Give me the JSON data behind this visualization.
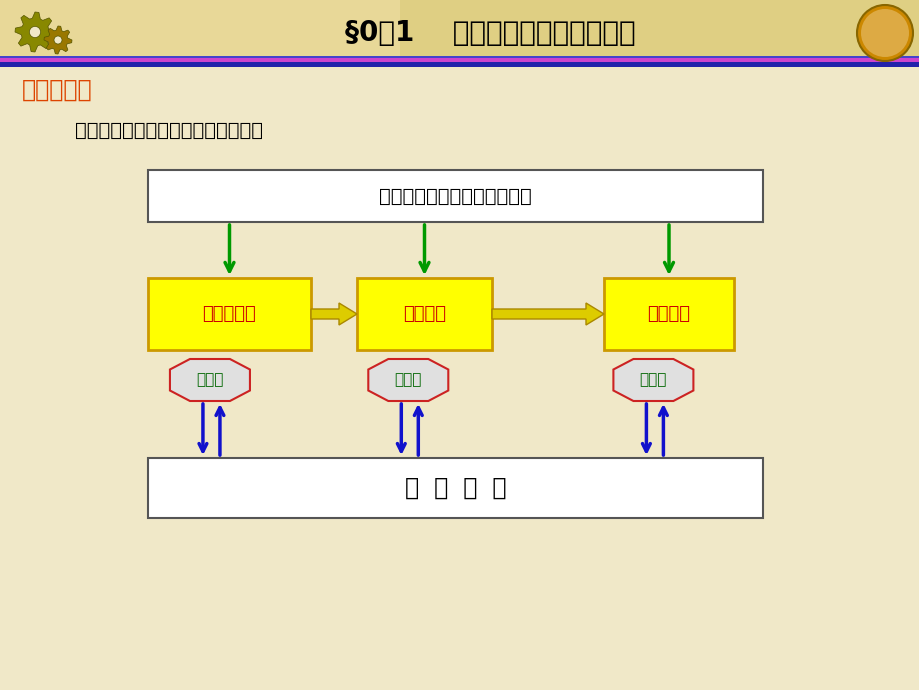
{
  "bg_color": "#f0e8c8",
  "header_bg_left": "#e8d898",
  "header_bg_right": "#d8c878",
  "title_text": "§0－1    本课程研究的对象和内容",
  "section_title": "机器的组成",
  "intro_text": "一台完整的机器的组成大致可包括：",
  "top_box_text": "润滑、显示、照明等辅助系统",
  "control_box_text": "控  制  系  统",
  "main_boxes": [
    "原动机部分",
    "传动部分",
    "执行部分"
  ],
  "sensor_text": "传感器",
  "box_fill": "#ffff00",
  "box_edge": "#cc9900",
  "top_box_fill": "#ffffff",
  "top_box_edge": "#555555",
  "control_box_fill": "#ffffff",
  "control_box_edge": "#555555",
  "sensor_fill": "#e0e0e0",
  "sensor_edge": "#cc2222",
  "sensor_text_color": "#006600",
  "main_box_text_color": "#cc0000",
  "green_arrow": "#009900",
  "blue_arrow": "#1111cc",
  "horiz_arrow_fill": "#ddcc00",
  "horiz_arrow_edge": "#aa8800",
  "stripe1_color": "#3333bb",
  "stripe2_color": "#000088"
}
